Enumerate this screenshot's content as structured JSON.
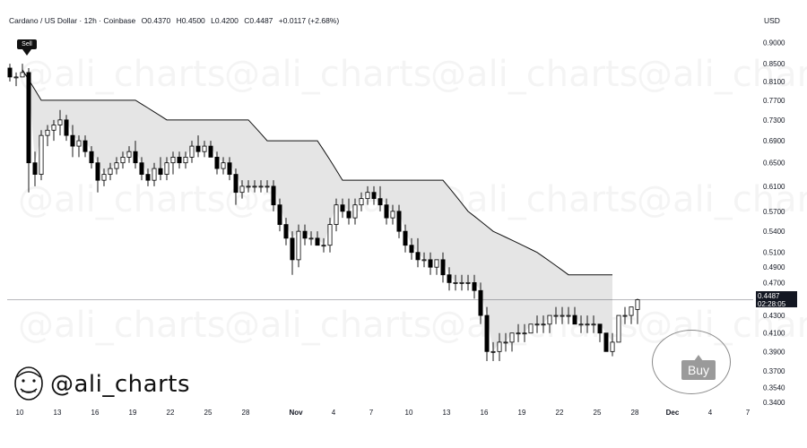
{
  "header": {
    "symbol": "Cardano / US Dollar · 12h · Coinbase",
    "open": "O0.4370",
    "high": "H0.4500",
    "low": "L0.4200",
    "close": "C0.4487",
    "change": "+0.0117 (+2.68%)"
  },
  "currency": "USD",
  "watermark": "@ali_charts",
  "brand": {
    "handle": "@ali_charts"
  },
  "last_price": {
    "price": "0.4487",
    "countdown": "02:28:05"
  },
  "signals": {
    "sell": "Sell",
    "buy": "Buy"
  },
  "colors": {
    "up": "#ffffff",
    "down": "#000000",
    "band_fill": "#e5e5e5",
    "band_line": "#111111"
  },
  "chart_data": {
    "type": "candlestick",
    "title": "Cardano / US Dollar · 12h · Coinbase",
    "y_scale": "log",
    "ylim": [
      0.335,
      0.93
    ],
    "y_ticks": [
      "0.9000",
      "0.8500",
      "0.8100",
      "0.7700",
      "0.7300",
      "0.6900",
      "0.6500",
      "0.6100",
      "0.5700",
      "0.5400",
      "0.5100",
      "0.4900",
      "0.4700",
      "0.4300",
      "0.4100",
      "0.3900",
      "0.3700",
      "0.3540",
      "0.3400"
    ],
    "x_tick_labels": [
      "10",
      "13",
      "16",
      "19",
      "22",
      "25",
      "28",
      "Nov",
      "4",
      "7",
      "10",
      "13",
      "16",
      "19",
      "22",
      "25",
      "28",
      "Dec",
      "4",
      "7"
    ],
    "x_tick_days": [
      0,
      3,
      6,
      9,
      12,
      15,
      18,
      22,
      25,
      28,
      31,
      34,
      37,
      40,
      43,
      46,
      49,
      52,
      55,
      58
    ],
    "candles_per_day": 2,
    "candles_ohlc": [
      [
        0.84,
        0.85,
        0.81,
        0.82
      ],
      [
        0.82,
        0.83,
        0.8,
        0.82
      ],
      [
        0.82,
        0.85,
        0.82,
        0.83
      ],
      [
        0.83,
        0.84,
        0.6,
        0.65
      ],
      [
        0.65,
        0.67,
        0.61,
        0.63
      ],
      [
        0.63,
        0.71,
        0.62,
        0.7
      ],
      [
        0.7,
        0.72,
        0.68,
        0.71
      ],
      [
        0.71,
        0.73,
        0.69,
        0.72
      ],
      [
        0.72,
        0.75,
        0.7,
        0.73
      ],
      [
        0.73,
        0.74,
        0.69,
        0.7
      ],
      [
        0.7,
        0.72,
        0.66,
        0.68
      ],
      [
        0.68,
        0.7,
        0.66,
        0.69
      ],
      [
        0.69,
        0.7,
        0.66,
        0.67
      ],
      [
        0.67,
        0.68,
        0.64,
        0.65
      ],
      [
        0.65,
        0.66,
        0.6,
        0.62
      ],
      [
        0.62,
        0.64,
        0.61,
        0.63
      ],
      [
        0.63,
        0.65,
        0.62,
        0.64
      ],
      [
        0.64,
        0.66,
        0.63,
        0.65
      ],
      [
        0.65,
        0.67,
        0.64,
        0.66
      ],
      [
        0.66,
        0.68,
        0.65,
        0.67
      ],
      [
        0.67,
        0.69,
        0.64,
        0.65
      ],
      [
        0.65,
        0.66,
        0.62,
        0.63
      ],
      [
        0.63,
        0.64,
        0.61,
        0.62
      ],
      [
        0.62,
        0.65,
        0.61,
        0.64
      ],
      [
        0.64,
        0.66,
        0.62,
        0.63
      ],
      [
        0.63,
        0.66,
        0.62,
        0.65
      ],
      [
        0.65,
        0.67,
        0.63,
        0.66
      ],
      [
        0.66,
        0.67,
        0.64,
        0.65
      ],
      [
        0.65,
        0.67,
        0.64,
        0.66
      ],
      [
        0.66,
        0.69,
        0.65,
        0.68
      ],
      [
        0.68,
        0.7,
        0.66,
        0.67
      ],
      [
        0.67,
        0.69,
        0.66,
        0.68
      ],
      [
        0.68,
        0.69,
        0.66,
        0.66
      ],
      [
        0.66,
        0.67,
        0.63,
        0.64
      ],
      [
        0.64,
        0.66,
        0.63,
        0.65
      ],
      [
        0.65,
        0.66,
        0.62,
        0.63
      ],
      [
        0.63,
        0.64,
        0.58,
        0.6
      ],
      [
        0.6,
        0.62,
        0.59,
        0.61
      ],
      [
        0.61,
        0.62,
        0.6,
        0.61
      ],
      [
        0.61,
        0.62,
        0.6,
        0.61
      ],
      [
        0.61,
        0.62,
        0.6,
        0.61
      ],
      [
        0.61,
        0.62,
        0.6,
        0.61
      ],
      [
        0.61,
        0.62,
        0.57,
        0.58
      ],
      [
        0.58,
        0.59,
        0.54,
        0.55
      ],
      [
        0.55,
        0.56,
        0.52,
        0.53
      ],
      [
        0.53,
        0.54,
        0.48,
        0.5
      ],
      [
        0.5,
        0.55,
        0.49,
        0.54
      ],
      [
        0.54,
        0.55,
        0.52,
        0.53
      ],
      [
        0.53,
        0.54,
        0.52,
        0.53
      ],
      [
        0.53,
        0.54,
        0.52,
        0.52
      ],
      [
        0.52,
        0.53,
        0.51,
        0.52
      ],
      [
        0.52,
        0.56,
        0.51,
        0.55
      ],
      [
        0.55,
        0.59,
        0.54,
        0.58
      ],
      [
        0.58,
        0.59,
        0.56,
        0.57
      ],
      [
        0.57,
        0.59,
        0.55,
        0.56
      ],
      [
        0.56,
        0.59,
        0.55,
        0.58
      ],
      [
        0.58,
        0.6,
        0.57,
        0.59
      ],
      [
        0.59,
        0.61,
        0.58,
        0.6
      ],
      [
        0.6,
        0.61,
        0.58,
        0.59
      ],
      [
        0.59,
        0.61,
        0.57,
        0.58
      ],
      [
        0.58,
        0.59,
        0.55,
        0.56
      ],
      [
        0.56,
        0.58,
        0.55,
        0.57
      ],
      [
        0.57,
        0.58,
        0.53,
        0.54
      ],
      [
        0.54,
        0.55,
        0.51,
        0.52
      ],
      [
        0.52,
        0.53,
        0.5,
        0.51
      ],
      [
        0.51,
        0.53,
        0.49,
        0.5
      ],
      [
        0.5,
        0.51,
        0.49,
        0.5
      ],
      [
        0.5,
        0.51,
        0.48,
        0.49
      ],
      [
        0.49,
        0.5,
        0.48,
        0.5
      ],
      [
        0.5,
        0.51,
        0.47,
        0.48
      ],
      [
        0.48,
        0.49,
        0.46,
        0.47
      ],
      [
        0.47,
        0.48,
        0.46,
        0.47
      ],
      [
        0.47,
        0.48,
        0.46,
        0.47
      ],
      [
        0.47,
        0.48,
        0.46,
        0.47
      ],
      [
        0.47,
        0.48,
        0.45,
        0.46
      ],
      [
        0.46,
        0.47,
        0.42,
        0.43
      ],
      [
        0.43,
        0.44,
        0.38,
        0.39
      ],
      [
        0.39,
        0.4,
        0.38,
        0.39
      ],
      [
        0.39,
        0.41,
        0.38,
        0.4
      ],
      [
        0.4,
        0.41,
        0.39,
        0.4
      ],
      [
        0.4,
        0.41,
        0.39,
        0.41
      ],
      [
        0.41,
        0.42,
        0.4,
        0.41
      ],
      [
        0.41,
        0.42,
        0.4,
        0.41
      ],
      [
        0.41,
        0.42,
        0.41,
        0.42
      ],
      [
        0.42,
        0.43,
        0.41,
        0.42
      ],
      [
        0.42,
        0.43,
        0.41,
        0.42
      ],
      [
        0.42,
        0.43,
        0.41,
        0.43
      ],
      [
        0.43,
        0.44,
        0.42,
        0.43
      ],
      [
        0.43,
        0.44,
        0.42,
        0.43
      ],
      [
        0.43,
        0.44,
        0.42,
        0.43
      ],
      [
        0.43,
        0.44,
        0.42,
        0.42
      ],
      [
        0.42,
        0.43,
        0.41,
        0.42
      ],
      [
        0.42,
        0.43,
        0.41,
        0.42
      ],
      [
        0.42,
        0.43,
        0.41,
        0.42
      ],
      [
        0.42,
        0.42,
        0.4,
        0.41
      ],
      [
        0.41,
        0.41,
        0.39,
        0.39
      ],
      [
        0.39,
        0.41,
        0.385,
        0.4
      ],
      [
        0.4,
        0.43,
        0.4,
        0.43
      ],
      [
        0.43,
        0.44,
        0.42,
        0.43
      ],
      [
        0.43,
        0.44,
        0.42,
        0.44
      ],
      [
        0.437,
        0.45,
        0.42,
        0.4487
      ]
    ],
    "band_upper": [
      [
        0,
        0.88
      ],
      [
        2.5,
        0.77
      ],
      [
        10,
        0.77
      ],
      [
        12.5,
        0.73
      ],
      [
        19,
        0.73
      ],
      [
        20.5,
        0.69
      ],
      [
        24.5,
        0.69
      ],
      [
        26.5,
        0.62
      ],
      [
        34.5,
        0.62
      ],
      [
        36.5,
        0.57
      ],
      [
        38.5,
        0.54
      ],
      [
        42,
        0.51
      ],
      [
        44.5,
        0.48
      ],
      [
        51,
        0.48
      ],
      [
        52.5,
        0.44
      ],
      [
        54,
        0.432
      ]
    ],
    "band_lower_close_based": true
  }
}
